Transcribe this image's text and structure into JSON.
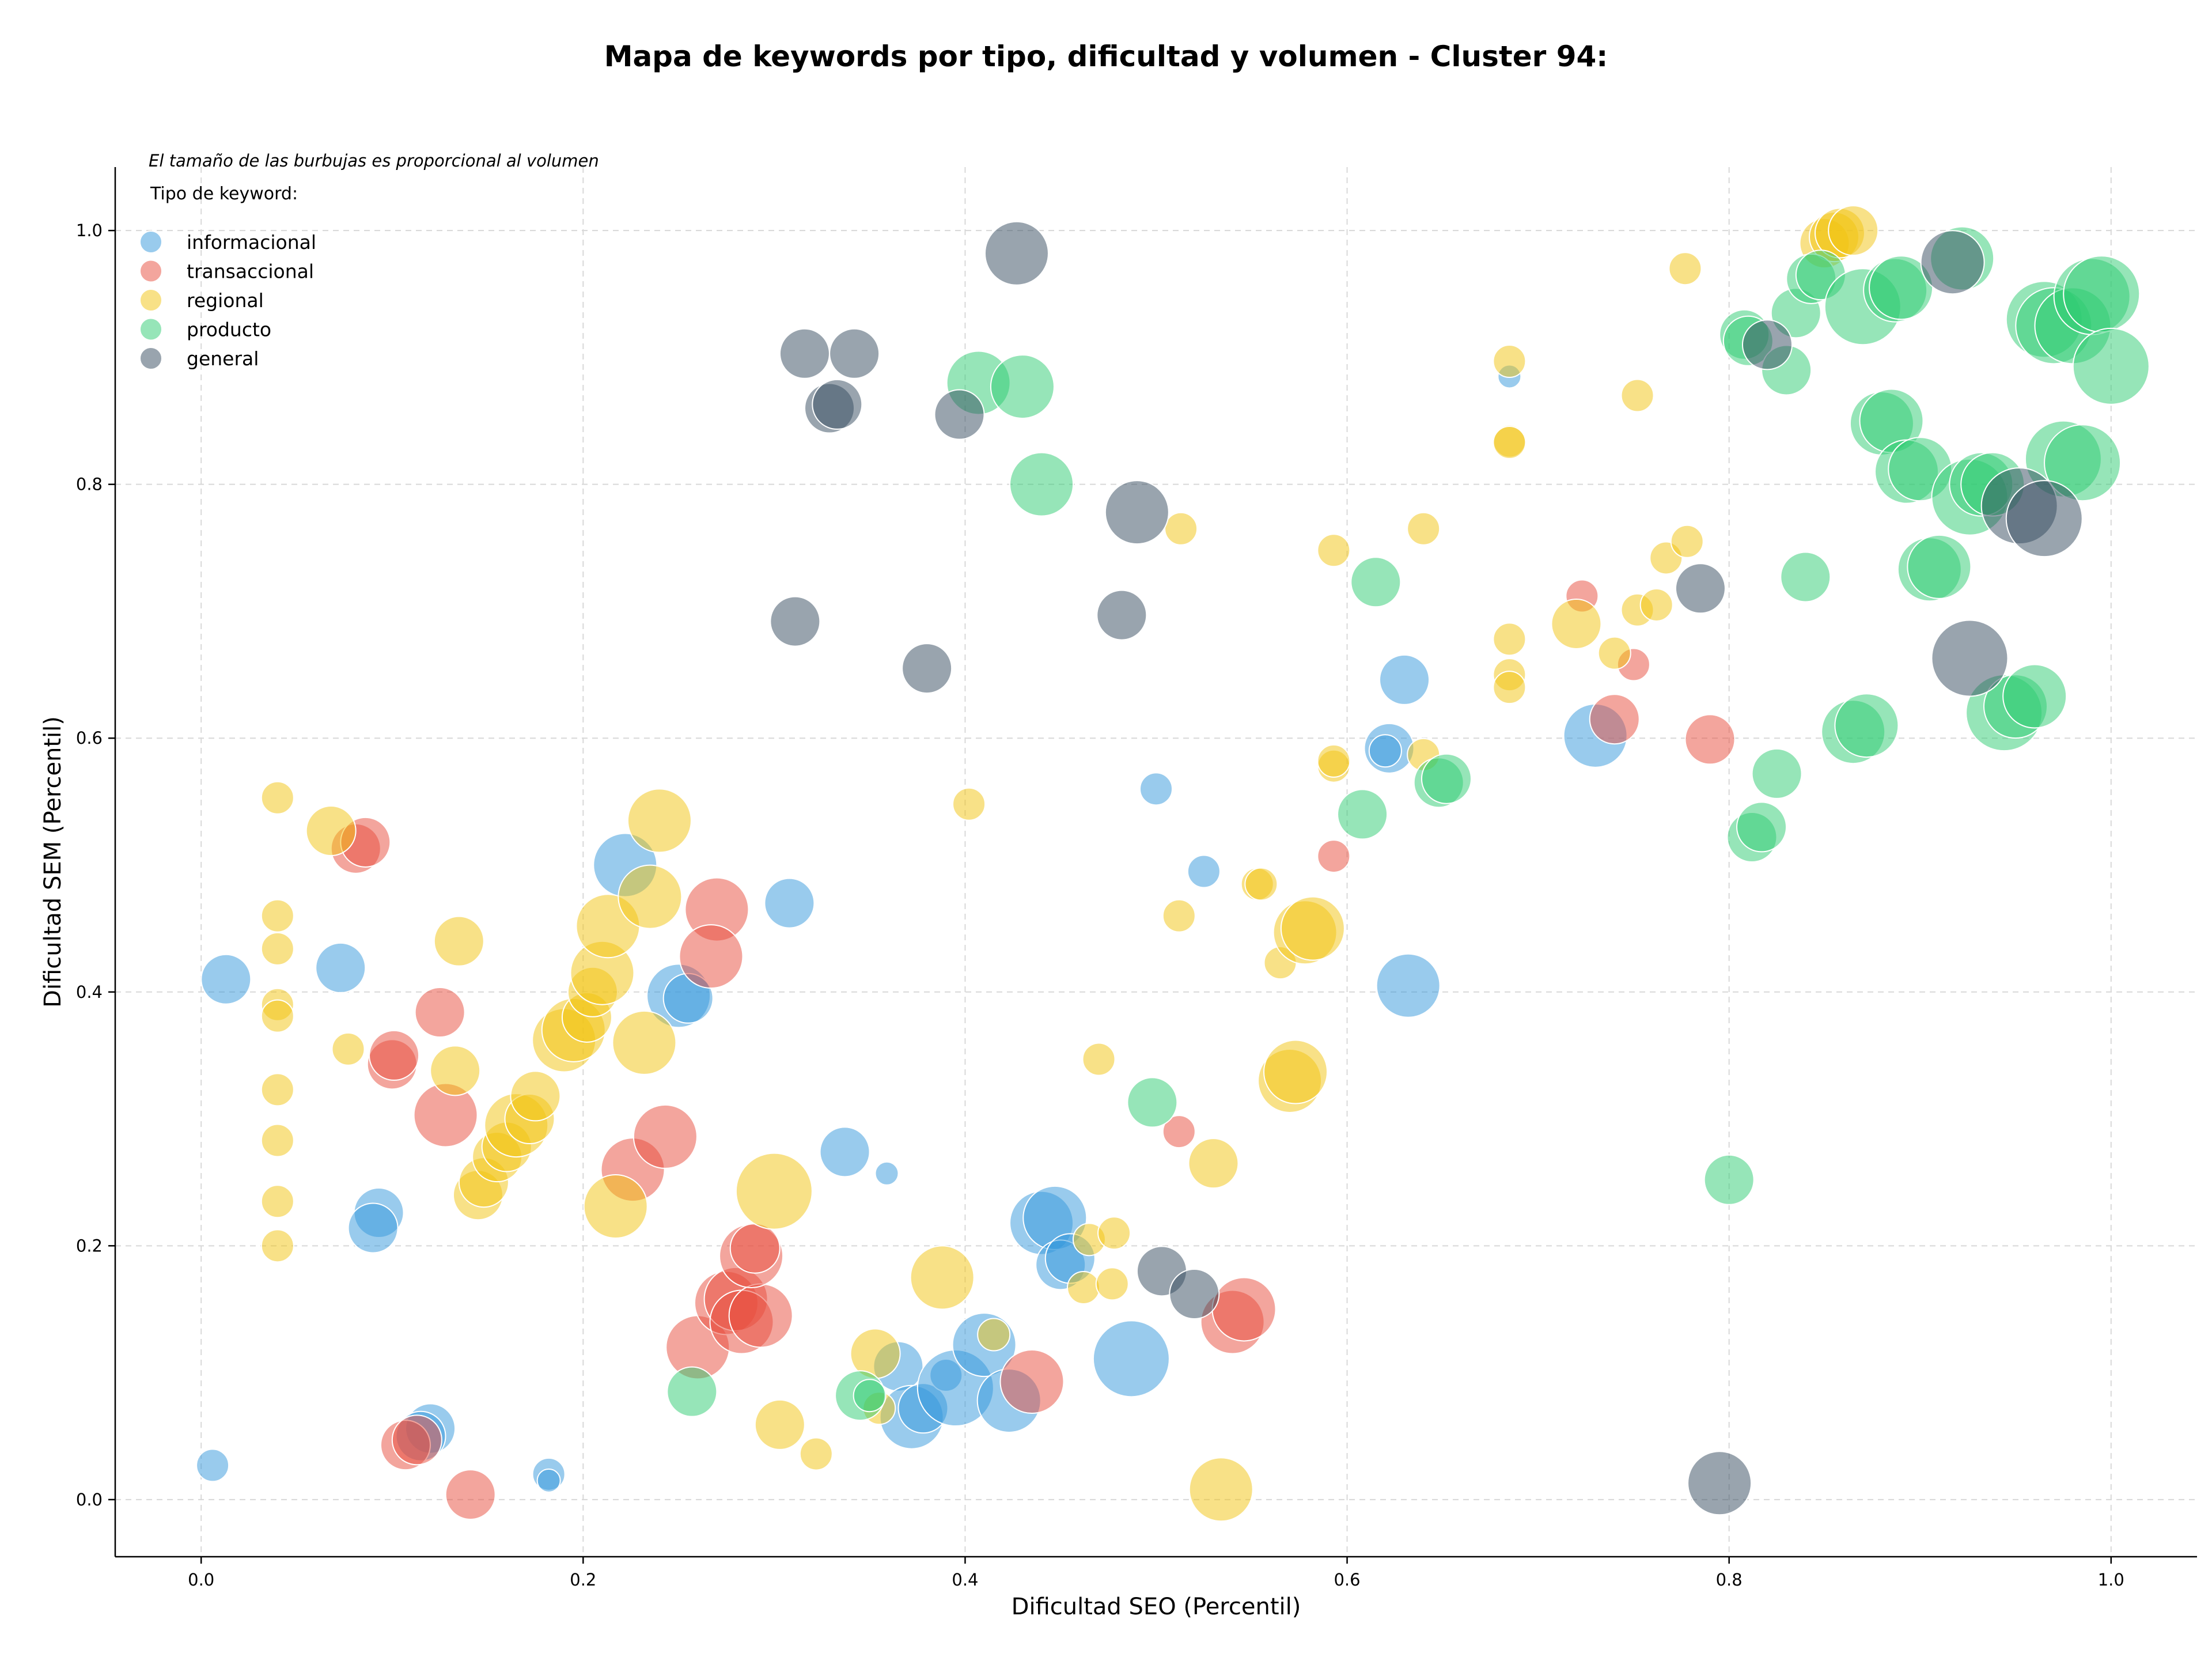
{
  "chart_data": {
    "type": "scatter",
    "title": "Mapa de keywords por tipo, dificultad y volumen - Cluster 94:",
    "xlabel": "Dificultad SEO (Percentil)",
    "ylabel": "Dificultad SEM (Percentil)",
    "xlim": [
      -0.045,
      1.045
    ],
    "ylim": [
      -0.045,
      1.05
    ],
    "xticks": [
      "0.0",
      "0.2",
      "0.4",
      "0.6",
      "0.8",
      "1.0"
    ],
    "yticks": [
      "0.0",
      "0.2",
      "0.4",
      "0.6",
      "0.8",
      "1.0"
    ],
    "grid": true,
    "note": "El tamaño de las burbujas es proporcional al volumen",
    "legend": {
      "title": "Tipo de keyword:",
      "placement": "top-left"
    },
    "series": [
      {
        "name": "informacional",
        "color": "#3498db",
        "points": [
          [
            0.013,
            0.41,
            3
          ],
          [
            0.073,
            0.419,
            3
          ],
          [
            0.093,
            0.226,
            3
          ],
          [
            0.09,
            0.214,
            3
          ],
          [
            0.006,
            0.027,
            2
          ],
          [
            0.12,
            0.056,
            3
          ],
          [
            0.115,
            0.05,
            3
          ],
          [
            0.182,
            0.02,
            2
          ],
          [
            0.182,
            0.015,
            1
          ],
          [
            0.222,
            0.5,
            4
          ],
          [
            0.25,
            0.397,
            4
          ],
          [
            0.255,
            0.395,
            3
          ],
          [
            0.308,
            0.47,
            3
          ],
          [
            0.337,
            0.274,
            3
          ],
          [
            0.359,
            0.257,
            1
          ],
          [
            0.365,
            0.105,
            3
          ],
          [
            0.372,
            0.065,
            4
          ],
          [
            0.378,
            0.072,
            3
          ],
          [
            0.39,
            0.098,
            2
          ],
          [
            0.395,
            0.088,
            5
          ],
          [
            0.41,
            0.122,
            4
          ],
          [
            0.423,
            0.078,
            4
          ],
          [
            0.44,
            0.218,
            4
          ],
          [
            0.447,
            0.222,
            4
          ],
          [
            0.45,
            0.185,
            3
          ],
          [
            0.455,
            0.19,
            3
          ],
          [
            0.487,
            0.111,
            5
          ],
          [
            0.5,
            0.56,
            2
          ],
          [
            0.525,
            0.495,
            2
          ],
          [
            0.622,
            0.592,
            3
          ],
          [
            0.62,
            0.59,
            2
          ],
          [
            0.63,
            0.646,
            3
          ],
          [
            0.632,
            0.405,
            4
          ],
          [
            0.73,
            0.602,
            4
          ],
          [
            0.685,
            0.885,
            1
          ]
        ]
      },
      {
        "name": "transaccional",
        "color": "#e74c3c",
        "points": [
          [
            0.081,
            0.513,
            3
          ],
          [
            0.086,
            0.518,
            3
          ],
          [
            0.1,
            0.343,
            3
          ],
          [
            0.101,
            0.35,
            3
          ],
          [
            0.125,
            0.384,
            3
          ],
          [
            0.128,
            0.303,
            4
          ],
          [
            0.107,
            0.043,
            3
          ],
          [
            0.113,
            0.047,
            3
          ],
          [
            0.141,
            0.004,
            3
          ],
          [
            0.226,
            0.26,
            4
          ],
          [
            0.243,
            0.286,
            4
          ],
          [
            0.27,
            0.465,
            4
          ],
          [
            0.267,
            0.428,
            4
          ],
          [
            0.26,
            0.12,
            4
          ],
          [
            0.275,
            0.155,
            4
          ],
          [
            0.28,
            0.158,
            4
          ],
          [
            0.283,
            0.14,
            4
          ],
          [
            0.293,
            0.145,
            4
          ],
          [
            0.288,
            0.192,
            4
          ],
          [
            0.29,
            0.198,
            3
          ],
          [
            0.435,
            0.093,
            4
          ],
          [
            0.54,
            0.14,
            4
          ],
          [
            0.546,
            0.15,
            4
          ],
          [
            0.512,
            0.29,
            2
          ],
          [
            0.593,
            0.507,
            2
          ],
          [
            0.723,
            0.712,
            2
          ],
          [
            0.74,
            0.615,
            3
          ],
          [
            0.75,
            0.658,
            2
          ],
          [
            0.79,
            0.599,
            3
          ]
        ]
      },
      {
        "name": "regional",
        "color": "#f1c40f",
        "points": [
          [
            0.04,
            0.553,
            2
          ],
          [
            0.04,
            0.46,
            2
          ],
          [
            0.04,
            0.434,
            2
          ],
          [
            0.04,
            0.39,
            2
          ],
          [
            0.04,
            0.381,
            2
          ],
          [
            0.04,
            0.323,
            2
          ],
          [
            0.04,
            0.283,
            2
          ],
          [
            0.04,
            0.235,
            2
          ],
          [
            0.04,
            0.2,
            2
          ],
          [
            0.068,
            0.527,
            3
          ],
          [
            0.077,
            0.355,
            2
          ],
          [
            0.135,
            0.44,
            3
          ],
          [
            0.133,
            0.338,
            3
          ],
          [
            0.145,
            0.24,
            3
          ],
          [
            0.148,
            0.25,
            3
          ],
          [
            0.155,
            0.27,
            3
          ],
          [
            0.16,
            0.278,
            3
          ],
          [
            0.165,
            0.295,
            4
          ],
          [
            0.172,
            0.3,
            3
          ],
          [
            0.175,
            0.318,
            3
          ],
          [
            0.19,
            0.362,
            4
          ],
          [
            0.195,
            0.37,
            4
          ],
          [
            0.202,
            0.38,
            3
          ],
          [
            0.205,
            0.4,
            3
          ],
          [
            0.21,
            0.415,
            4
          ],
          [
            0.213,
            0.452,
            4
          ],
          [
            0.232,
            0.36,
            4
          ],
          [
            0.217,
            0.231,
            4
          ],
          [
            0.235,
            0.475,
            4
          ],
          [
            0.24,
            0.535,
            4
          ],
          [
            0.3,
            0.243,
            5
          ],
          [
            0.303,
            0.059,
            3
          ],
          [
            0.322,
            0.036,
            2
          ],
          [
            0.353,
            0.115,
            3
          ],
          [
            0.355,
            0.072,
            2
          ],
          [
            0.388,
            0.175,
            4
          ],
          [
            0.402,
            0.548,
            2
          ],
          [
            0.415,
            0.13,
            2
          ],
          [
            0.462,
            0.167,
            2
          ],
          [
            0.465,
            0.205,
            2
          ],
          [
            0.47,
            0.347,
            2
          ],
          [
            0.477,
            0.17,
            2
          ],
          [
            0.478,
            0.21,
            2
          ],
          [
            0.513,
            0.765,
            2
          ],
          [
            0.512,
            0.46,
            2
          ],
          [
            0.53,
            0.265,
            3
          ],
          [
            0.534,
            0.008,
            4
          ],
          [
            0.553,
            0.485,
            2
          ],
          [
            0.555,
            0.485,
            2
          ],
          [
            0.565,
            0.423,
            2
          ],
          [
            0.57,
            0.33,
            4
          ],
          [
            0.573,
            0.337,
            4
          ],
          [
            0.578,
            0.447,
            4
          ],
          [
            0.582,
            0.45,
            4
          ],
          [
            0.593,
            0.748,
            2
          ],
          [
            0.593,
            0.578,
            2
          ],
          [
            0.593,
            0.582,
            2
          ],
          [
            0.64,
            0.765,
            2
          ],
          [
            0.64,
            0.587,
            2
          ],
          [
            0.685,
            0.897,
            2
          ],
          [
            0.685,
            0.834,
            2
          ],
          [
            0.685,
            0.833,
            2
          ],
          [
            0.685,
            0.678,
            2
          ],
          [
            0.685,
            0.65,
            2
          ],
          [
            0.685,
            0.64,
            2
          ],
          [
            0.72,
            0.69,
            3
          ],
          [
            0.74,
            0.667,
            2
          ],
          [
            0.752,
            0.87,
            2
          ],
          [
            0.752,
            0.701,
            2
          ],
          [
            0.762,
            0.705,
            2
          ],
          [
            0.767,
            0.742,
            2
          ],
          [
            0.778,
            0.755,
            2
          ],
          [
            0.777,
            0.97,
            2
          ],
          [
            0.85,
            0.99,
            3
          ],
          [
            0.855,
            0.995,
            3
          ],
          [
            0.858,
            0.998,
            3
          ],
          [
            0.865,
            1.0,
            3
          ]
        ]
      },
      {
        "name": "producto",
        "color": "#2ecc71",
        "points": [
          [
            0.257,
            0.085,
            3
          ],
          [
            0.345,
            0.082,
            3
          ],
          [
            0.35,
            0.082,
            2
          ],
          [
            0.407,
            0.88,
            4
          ],
          [
            0.43,
            0.877,
            4
          ],
          [
            0.44,
            0.8,
            4
          ],
          [
            0.498,
            0.313,
            3
          ],
          [
            0.608,
            0.54,
            3
          ],
          [
            0.615,
            0.723,
            3
          ],
          [
            0.648,
            0.565,
            3
          ],
          [
            0.652,
            0.568,
            3
          ],
          [
            0.8,
            0.252,
            3
          ],
          [
            0.808,
            0.918,
            3
          ],
          [
            0.81,
            0.913,
            3
          ],
          [
            0.812,
            0.522,
            3
          ],
          [
            0.817,
            0.53,
            3
          ],
          [
            0.825,
            0.572,
            3
          ],
          [
            0.83,
            0.89,
            3
          ],
          [
            0.835,
            0.935,
            3
          ],
          [
            0.84,
            0.727,
            3
          ],
          [
            0.843,
            0.962,
            3
          ],
          [
            0.848,
            0.965,
            3
          ],
          [
            0.865,
            0.605,
            4
          ],
          [
            0.872,
            0.61,
            4
          ],
          [
            0.87,
            0.94,
            5
          ],
          [
            0.88,
            0.848,
            4
          ],
          [
            0.885,
            0.85,
            4
          ],
          [
            0.887,
            0.953,
            4
          ],
          [
            0.89,
            0.955,
            4
          ],
          [
            0.893,
            0.81,
            4
          ],
          [
            0.9,
            0.812,
            4
          ],
          [
            0.905,
            0.733,
            4
          ],
          [
            0.91,
            0.735,
            4
          ],
          [
            0.922,
            0.978,
            4
          ],
          [
            0.926,
            0.79,
            5
          ],
          [
            0.932,
            0.8,
            4
          ],
          [
            0.938,
            0.8,
            4
          ],
          [
            0.944,
            0.62,
            5
          ],
          [
            0.95,
            0.625,
            4
          ],
          [
            0.96,
            0.633,
            4
          ],
          [
            0.965,
            0.93,
            5
          ],
          [
            0.97,
            0.925,
            5
          ],
          [
            0.975,
            0.82,
            5
          ],
          [
            0.98,
            0.925,
            5
          ],
          [
            0.985,
            0.817,
            5
          ],
          [
            0.99,
            0.948,
            5
          ],
          [
            0.995,
            0.95,
            5
          ],
          [
            1.0,
            0.893,
            5
          ]
        ]
      },
      {
        "name": "general",
        "color": "#34495e",
        "points": [
          [
            0.316,
            0.903,
            3
          ],
          [
            0.342,
            0.903,
            3
          ],
          [
            0.329,
            0.86,
            3
          ],
          [
            0.333,
            0.863,
            3
          ],
          [
            0.311,
            0.692,
            3
          ],
          [
            0.38,
            0.655,
            3
          ],
          [
            0.397,
            0.855,
            3
          ],
          [
            0.427,
            0.982,
            4
          ],
          [
            0.482,
            0.697,
            3
          ],
          [
            0.49,
            0.778,
            4
          ],
          [
            0.503,
            0.18,
            3
          ],
          [
            0.52,
            0.162,
            3
          ],
          [
            0.785,
            0.718,
            3
          ],
          [
            0.795,
            0.013,
            4
          ],
          [
            0.82,
            0.91,
            3
          ],
          [
            0.917,
            0.975,
            4
          ],
          [
            0.926,
            0.663,
            5
          ],
          [
            0.952,
            0.783,
            5
          ],
          [
            0.965,
            0.773,
            5
          ]
        ]
      }
    ]
  }
}
